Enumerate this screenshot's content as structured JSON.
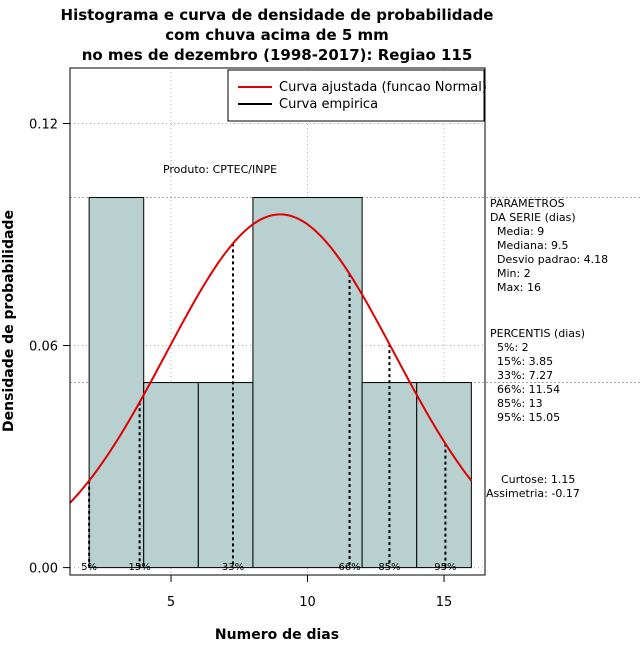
{
  "chart_data": {
    "type": "bar",
    "title": [
      "Histograma e curva de densidade de probabilidade",
      "com chuva acima de 5 mm",
      "no mes de dezembro (1998-2017): Regiao 115"
    ],
    "xlabel": "Numero de dias",
    "ylabel": "Densidade de probabilidade",
    "xlim": [
      1.3,
      16.5
    ],
    "ylim": [
      -0.002,
      0.135
    ],
    "xticks": [
      5,
      10,
      15
    ],
    "xtick_labels": [
      "5",
      "10",
      "15"
    ],
    "yticks": [
      0.0,
      0.06,
      0.12
    ],
    "ytick_labels": [
      "0.00",
      "0.06",
      "0.12"
    ],
    "bins": [
      {
        "x0": 2,
        "x1": 4,
        "density": 0.1
      },
      {
        "x0": 4,
        "x1": 6,
        "density": 0.05
      },
      {
        "x0": 6,
        "x1": 8,
        "density": 0.05
      },
      {
        "x0": 8,
        "x1": 12,
        "density": 0.1
      },
      {
        "x0": 12,
        "x1": 14,
        "density": 0.05
      },
      {
        "x0": 14,
        "x1": 16,
        "density": 0.05
      }
    ],
    "normal_fit": {
      "mean": 9,
      "sd": 4.18,
      "name": "Curva ajustada (funcao Normal)",
      "color": "#e00000"
    },
    "empirical_name": "Curva empirica",
    "hlines": [
      0.1,
      0.05
    ],
    "percentile_markers": [
      {
        "label": "5%",
        "x": 2
      },
      {
        "label": "15%",
        "x": 3.85
      },
      {
        "label": "33%",
        "x": 7.27
      },
      {
        "label": "66%",
        "x": 11.54
      },
      {
        "label": "85%",
        "x": 13
      },
      {
        "label": "95%",
        "x": 15.05
      }
    ],
    "product_label": "Produto: CPTEC/INPE",
    "legend_position": "top-right",
    "bar_color": "#b8d0d0"
  },
  "side_panel": {
    "params_title": [
      "PARAMETROS",
      "DA SERIE (dias)"
    ],
    "params": [
      "Media: 9",
      "Mediana: 9.5",
      "Desvio padrao: 4.18",
      "Min: 2",
      "Max: 16"
    ],
    "percentis_title": "PERCENTIS (dias)",
    "percentis": [
      "5%: 2",
      "15%: 3.85",
      "33%: 7.27",
      "66%: 11.54",
      "85%: 13",
      "95%: 15.05"
    ],
    "curtose": "Curtose: 1.15",
    "assimetria": "Assimetria: -0.17"
  }
}
